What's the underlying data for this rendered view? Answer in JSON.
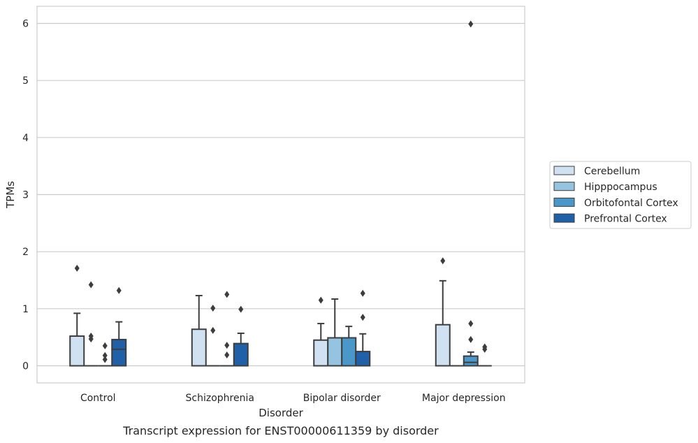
{
  "chart_data": {
    "type": "box",
    "xlabel": "Disorder",
    "ylabel": "TPMs",
    "caption": "Transcript expression for ENST00000611359 by disorder",
    "ylim": [
      -0.3,
      6.3
    ],
    "yticks": [
      0,
      1,
      2,
      3,
      4,
      5,
      6
    ],
    "grid": "horizontal",
    "legend_position": "right",
    "categories": [
      "Control",
      "Schizophrenia",
      "Bipolar disorder",
      "Major depression"
    ],
    "series": [
      {
        "name": "Cerebellum",
        "color": "#d0e1f2"
      },
      {
        "name": "Hipppocampus",
        "color": "#94c4df"
      },
      {
        "name": "Orbitofontal Cortex",
        "color": "#4a98c9"
      },
      {
        "name": "Prefrontal Cortex",
        "color": "#2060a8"
      }
    ],
    "boxes": [
      [
        {
          "q1": 0,
          "median": 0,
          "q3": 0.52,
          "lo": 0,
          "hi": 0.92,
          "outliers": [
            1.71
          ]
        },
        {
          "q1": 0,
          "median": 0,
          "q3": 0,
          "lo": 0,
          "hi": 0,
          "outliers": [
            0.47,
            0.52,
            1.42
          ]
        },
        {
          "q1": 0,
          "median": 0,
          "q3": 0,
          "lo": 0,
          "hi": 0,
          "outliers": [
            0.11,
            0.18,
            0.35
          ]
        },
        {
          "q1": 0,
          "median": 0.29,
          "q3": 0.46,
          "lo": 0,
          "hi": 0.77,
          "outliers": [
            1.32
          ]
        }
      ],
      [
        {
          "q1": 0,
          "median": 0,
          "q3": 0.64,
          "lo": 0,
          "hi": 1.23,
          "outliers": []
        },
        {
          "q1": 0,
          "median": 0,
          "q3": 0,
          "lo": 0,
          "hi": 0,
          "outliers": [
            0.62,
            1.01
          ]
        },
        {
          "q1": 0,
          "median": 0,
          "q3": 0,
          "lo": 0,
          "hi": 0,
          "outliers": [
            0.19,
            0.36,
            1.25
          ]
        },
        {
          "q1": 0,
          "median": 0,
          "q3": 0.39,
          "lo": 0,
          "hi": 0.57,
          "outliers": [
            0.99
          ]
        }
      ],
      [
        {
          "q1": 0,
          "median": 0,
          "q3": 0.45,
          "lo": 0,
          "hi": 0.74,
          "outliers": [
            1.15
          ]
        },
        {
          "q1": 0,
          "median": 0,
          "q3": 0.49,
          "lo": 0,
          "hi": 1.17,
          "outliers": []
        },
        {
          "q1": 0,
          "median": 0,
          "q3": 0.49,
          "lo": 0,
          "hi": 0.69,
          "outliers": []
        },
        {
          "q1": 0,
          "median": 0,
          "q3": 0.25,
          "lo": 0,
          "hi": 0.56,
          "outliers": [
            0.85,
            1.27
          ]
        }
      ],
      [
        {
          "q1": 0,
          "median": 0,
          "q3": 0.72,
          "lo": 0,
          "hi": 1.49,
          "outliers": [
            1.84
          ]
        },
        {
          "q1": 0,
          "median": 0,
          "q3": 0,
          "lo": 0,
          "hi": 0,
          "outliers": []
        },
        {
          "q1": 0,
          "median": 0.06,
          "q3": 0.17,
          "lo": 0,
          "hi": 0.24,
          "outliers": [
            0.46,
            0.74,
            5.99
          ]
        },
        {
          "q1": 0,
          "median": 0,
          "q3": 0,
          "lo": 0,
          "hi": 0,
          "outliers": [
            0.29,
            0.33
          ]
        }
      ]
    ]
  }
}
